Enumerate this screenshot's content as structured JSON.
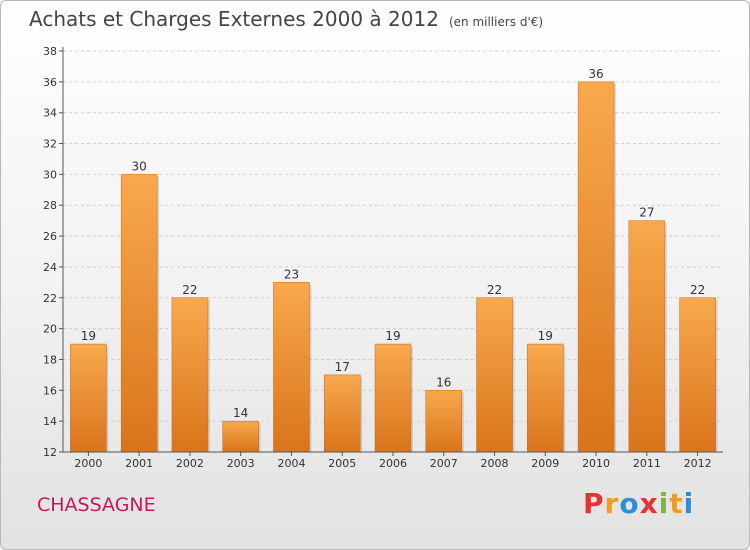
{
  "title": "Achats et Charges Externes 2000 à 2012",
  "subtitle": "(en milliers d'€)",
  "commune": "CHASSAGNE",
  "brand": "Proxiti",
  "colors": {
    "bar_light": "#f8a94d",
    "bar_dark": "#d9741c",
    "commune": "#c8175e",
    "brand_letters": [
      "#e8322f",
      "#f59b1b",
      "#2a8fd6",
      "#e8322f",
      "#7cb342",
      "#f59b1b",
      "#2a8fd6"
    ]
  },
  "chart_data": {
    "type": "bar",
    "categories": [
      "2000",
      "2001",
      "2002",
      "2003",
      "2004",
      "2005",
      "2006",
      "2007",
      "2008",
      "2009",
      "2010",
      "2011",
      "2012"
    ],
    "values": [
      19,
      30,
      22,
      14,
      23,
      17,
      19,
      16,
      22,
      19,
      36,
      27,
      22
    ],
    "ylim": [
      12,
      38
    ],
    "yticks": [
      12,
      14,
      16,
      18,
      20,
      22,
      24,
      26,
      28,
      30,
      32,
      34,
      36,
      38
    ],
    "grid": true,
    "xlabel": "",
    "ylabel": ""
  }
}
